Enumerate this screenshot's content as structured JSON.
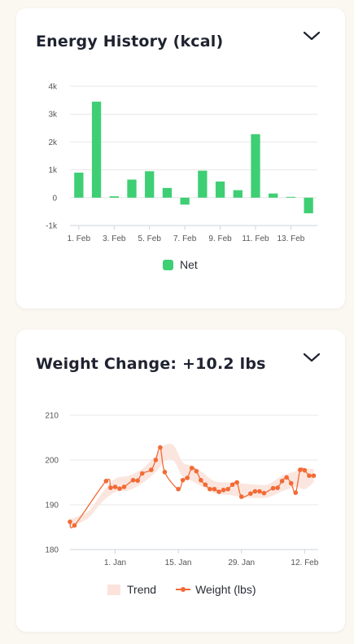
{
  "colors": {
    "net_bar": "#3ecf74",
    "weight_line": "#f26a35",
    "trend_band": "#fbe3dc",
    "grid": "#e7e7e7"
  },
  "icons": {
    "collapse": "chevron-down-icon"
  },
  "energy": {
    "title": "Energy History (kcal)",
    "chart_data": {
      "type": "bar",
      "title": "Energy History (kcal)",
      "x": [
        1,
        2,
        3,
        4,
        5,
        6,
        7,
        8,
        9,
        10,
        11,
        12,
        13,
        14
      ],
      "xtick_values": [
        1,
        3,
        5,
        7,
        9,
        11,
        13
      ],
      "xtick_labels": [
        "1. Feb",
        "3. Feb",
        "5. Feb",
        "7. Feb",
        "9. Feb",
        "11. Feb",
        "13. Feb"
      ],
      "ytick_values": [
        -1000,
        0,
        1000,
        2000,
        3000,
        4000
      ],
      "ytick_labels": [
        "-1k",
        "0",
        "1k",
        "2k",
        "3k",
        "4k"
      ],
      "ylim": [
        -1000,
        4000
      ],
      "series": [
        {
          "name": "Net",
          "values": [
            900,
            3450,
            50,
            650,
            950,
            350,
            -250,
            970,
            580,
            270,
            2280,
            150,
            30,
            -560
          ]
        }
      ],
      "legend": "bottom-center",
      "grid": true
    }
  },
  "weight": {
    "title": "Weight Change: +10.2 lbs",
    "chart_data": {
      "type": "line",
      "title": "Weight Change: +10.2 lbs",
      "xlim": [
        "2024-12-22",
        "2025-02-15"
      ],
      "xtick_values": [
        "2025-01-01",
        "2025-01-15",
        "2025-01-29",
        "2025-02-12"
      ],
      "xtick_labels": [
        "1. Jan",
        "15. Jan",
        "29. Jan",
        "12. Feb"
      ],
      "ylim": [
        180,
        210
      ],
      "ytick_values": [
        180,
        190,
        200,
        210
      ],
      "ytick_labels": [
        "180",
        "190",
        "200",
        "210"
      ],
      "grid": true,
      "legend": "bottom-center",
      "series": [
        {
          "name": "Weight (lbs)",
          "type": "line-markers",
          "x": [
            "2024-12-22",
            "2024-12-23",
            "2024-12-30",
            "2024-12-31",
            "2025-01-01",
            "2025-01-02",
            "2025-01-03",
            "2025-01-05",
            "2025-01-06",
            "2025-01-07",
            "2025-01-09",
            "2025-01-10",
            "2025-01-11",
            "2025-01-12",
            "2025-01-15",
            "2025-01-16",
            "2025-01-17",
            "2025-01-18",
            "2025-01-19",
            "2025-01-20",
            "2025-01-21",
            "2025-01-22",
            "2025-01-23",
            "2025-01-24",
            "2025-01-25",
            "2025-01-26",
            "2025-01-27",
            "2025-01-28",
            "2025-01-29",
            "2025-01-31",
            "2025-02-01",
            "2025-02-02",
            "2025-02-03",
            "2025-02-05",
            "2025-02-06",
            "2025-02-07",
            "2025-02-08",
            "2025-02-09",
            "2025-02-10",
            "2025-02-11",
            "2025-02-12",
            "2025-02-13",
            "2025-02-14"
          ],
          "y": [
            186.2,
            185.4,
            195.3,
            193.8,
            194.0,
            193.6,
            194.0,
            195.5,
            195.4,
            197.0,
            197.8,
            200.0,
            202.8,
            197.3,
            193.5,
            195.5,
            196.0,
            198.2,
            197.5,
            195.5,
            194.5,
            193.5,
            193.5,
            192.9,
            193.3,
            193.5,
            194.5,
            195.0,
            191.8,
            192.5,
            193.0,
            193.0,
            192.6,
            193.7,
            193.8,
            195.3,
            196.1,
            194.8,
            192.7,
            197.8,
            197.7,
            196.5,
            196.5
          ]
        },
        {
          "name": "Trend",
          "type": "band",
          "x": [
            "2024-12-22",
            "2024-12-26",
            "2024-12-29",
            "2025-01-01",
            "2025-01-04",
            "2025-01-07",
            "2025-01-10",
            "2025-01-12",
            "2025-01-14",
            "2025-01-16",
            "2025-01-18",
            "2025-01-20",
            "2025-01-23",
            "2025-01-26",
            "2025-01-29",
            "2025-02-01",
            "2025-02-04",
            "2025-02-07",
            "2025-02-10",
            "2025-02-12",
            "2025-02-14"
          ],
          "low": [
            185.0,
            187.0,
            190.5,
            192.8,
            193.2,
            194.8,
            197.3,
            199.8,
            199.8,
            196.2,
            195.3,
            194.2,
            192.6,
            192.2,
            191.8,
            191.5,
            191.7,
            193.0,
            194.0,
            193.5,
            195.0
          ],
          "high": [
            186.8,
            188.5,
            192.5,
            195.8,
            196.5,
            198.0,
            201.0,
            203.3,
            203.2,
            199.5,
            198.8,
            197.5,
            195.3,
            195.0,
            194.8,
            194.5,
            194.6,
            196.5,
            197.5,
            198.0,
            198.0
          ]
        }
      ]
    }
  },
  "legends": {
    "net": "Net",
    "trend": "Trend",
    "weight": "Weight (lbs)"
  }
}
